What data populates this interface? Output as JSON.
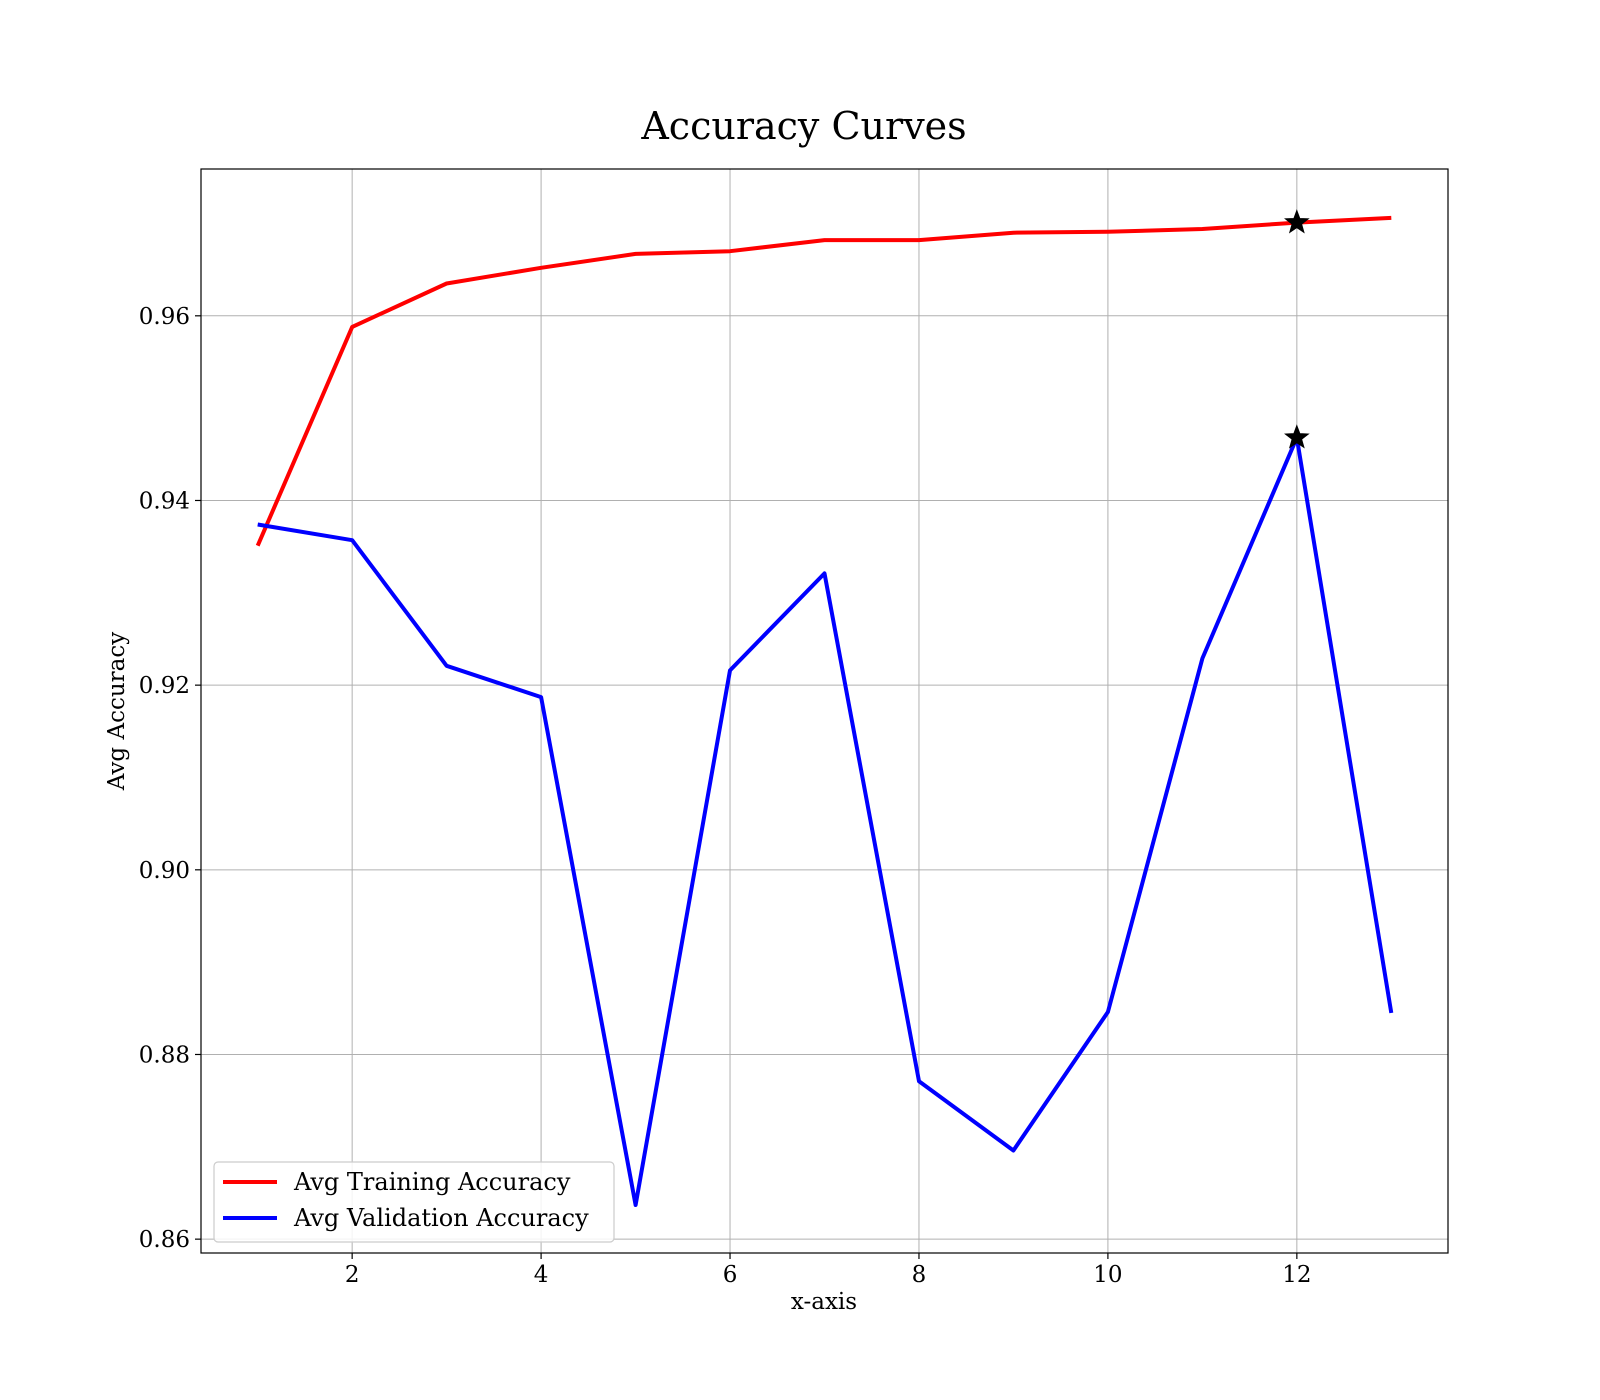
{
  "chart_data": {
    "type": "line",
    "title": "Accuracy Curves",
    "xlabel": "x-axis",
    "ylabel": "Avg Accuracy",
    "xlim": [
      0.4,
      13.6
    ],
    "ylim": [
      0.8585,
      0.9759
    ],
    "x_ticks": [
      2,
      4,
      6,
      8,
      10,
      12
    ],
    "x_tick_labels": [
      "2",
      "4",
      "6",
      "8",
      "10",
      "12"
    ],
    "y_ticks": [
      0.86,
      0.88,
      0.9,
      0.92,
      0.94,
      0.96
    ],
    "y_tick_labels": [
      "0.86",
      "0.88",
      "0.90",
      "0.92",
      "0.94",
      "0.96"
    ],
    "grid": true,
    "legend_position": "lower-left",
    "x": [
      1,
      2,
      3,
      4,
      5,
      6,
      7,
      8,
      9,
      10,
      11,
      12,
      13
    ],
    "series": [
      {
        "name": "Avg Training Accuracy",
        "color": "#ff0000",
        "values": [
          0.9351,
          0.9588,
          0.9635,
          0.9652,
          0.9667,
          0.967,
          0.9682,
          0.9682,
          0.969,
          0.9691,
          0.9694,
          0.9701,
          0.9706
        ]
      },
      {
        "name": "Avg Validation Accuracy",
        "color": "#0000ff",
        "values": [
          0.9374,
          0.9357,
          0.9221,
          0.9187,
          0.8637,
          0.9216,
          0.9321,
          0.8771,
          0.8696,
          0.8846,
          0.9229,
          0.9468,
          0.8845
        ]
      }
    ],
    "markers": [
      {
        "series": "Avg Training Accuracy",
        "x": 12,
        "y": 0.9701,
        "symbol": "star",
        "color": "#000000"
      },
      {
        "series": "Avg Validation Accuracy",
        "x": 12,
        "y": 0.9468,
        "symbol": "star",
        "color": "#000000"
      }
    ]
  }
}
